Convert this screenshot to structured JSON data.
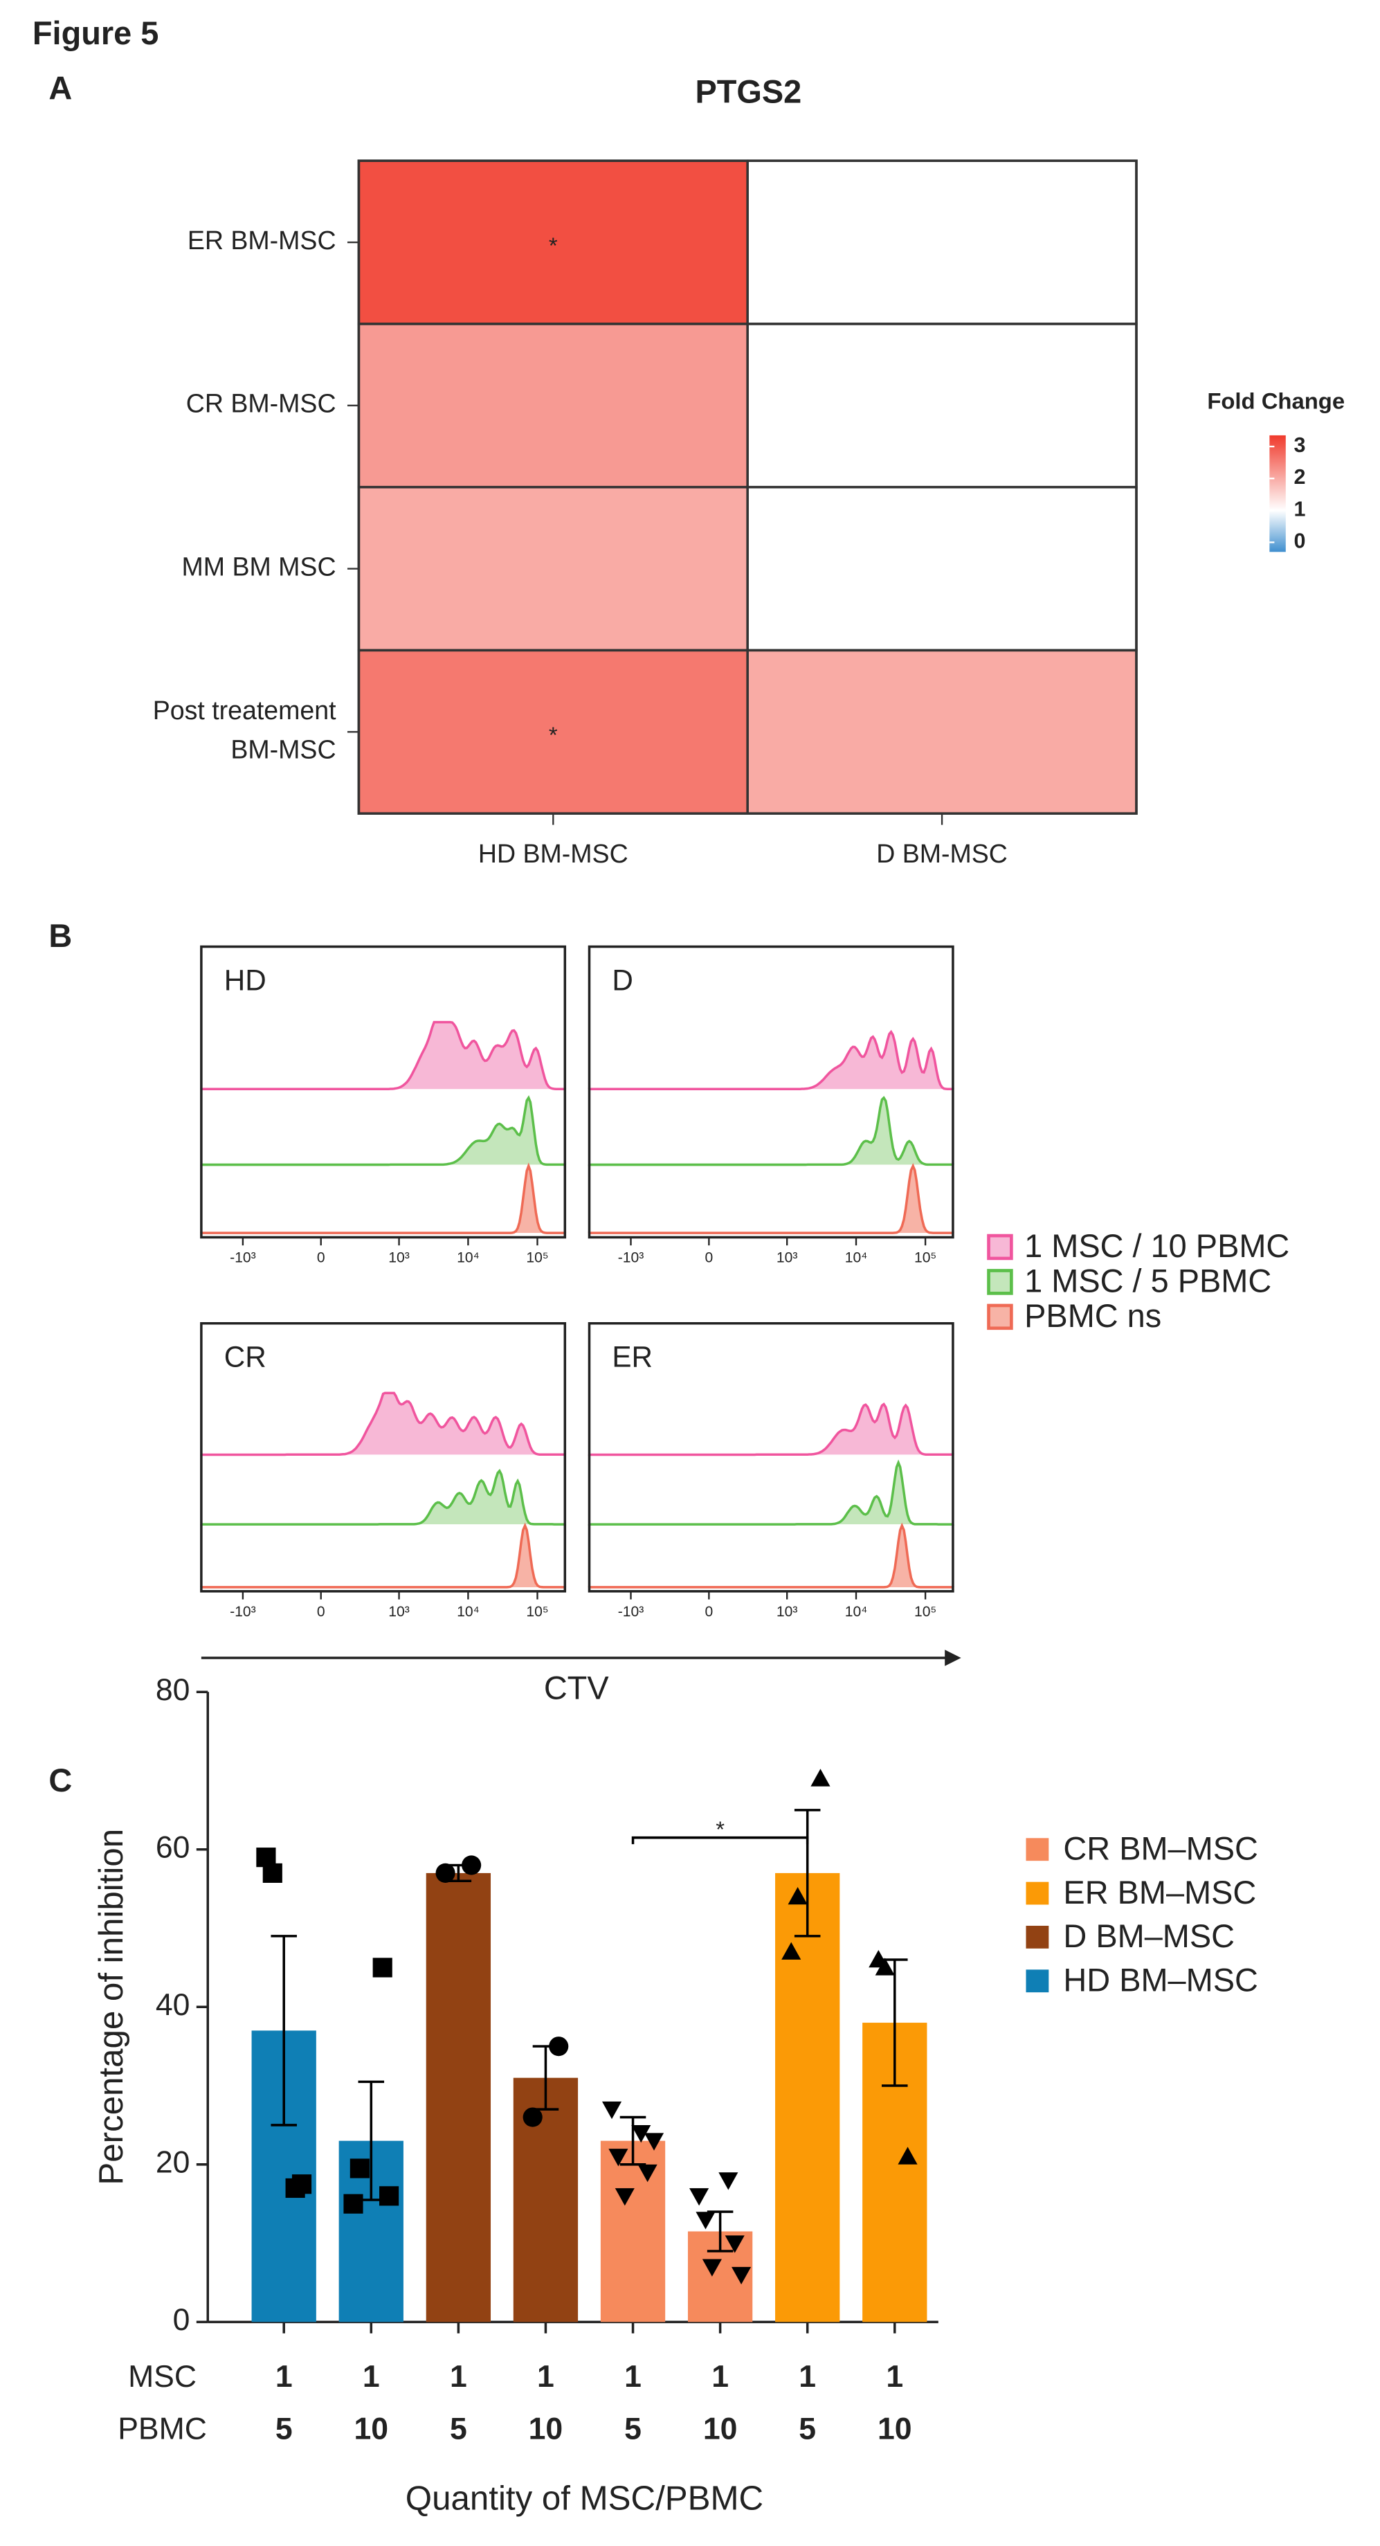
{
  "figure_title": "Figure 5",
  "chart_data": [
    {
      "type": "heatmap",
      "panel": "A",
      "title": "PTGS2",
      "rows": [
        "ER BM-MSC",
        "CR BM-MSC",
        "MM BM MSC",
        [
          "Post treatement",
          "BM-MSC"
        ]
      ],
      "columns": [
        "HD BM-MSC",
        "D BM-MSC"
      ],
      "values": [
        [
          3.1,
          1
        ],
        [
          2.2,
          1
        ],
        [
          2.0,
          1
        ],
        [
          2.6,
          2.0
        ]
      ],
      "cell_labels": [
        [
          "*",
          null
        ],
        [
          null,
          null
        ],
        [
          null,
          null
        ],
        [
          "*",
          null
        ]
      ],
      "colorbar": {
        "title": "Fold Change",
        "ticks": [
          0,
          1,
          2,
          3
        ],
        "zlim": [
          -0.3,
          3.35
        ],
        "midpoint": 1,
        "colors": {
          "low": "#3f8fcf",
          "mid": "#ffffff",
          "high": "#f03a2c"
        }
      }
    },
    {
      "type": "flow",
      "panel": "B",
      "panels": [
        "HD",
        "D",
        "CR",
        "ER"
      ],
      "series": [
        {
          "name": "1 MSC / 10 PBMC",
          "color": "#f0559e",
          "fill": "#f7b8d6"
        },
        {
          "name": "1 MSC / 5 PBMC",
          "color": "#5cbf4a",
          "fill": "#c4e6bb"
        },
        {
          "name": "PBMC ns",
          "color": "#ef6a55",
          "fill": "#f7b3a6"
        }
      ],
      "xscale": "asinh",
      "xlim": [
        -4000,
        250000
      ],
      "xticks": [
        {
          "value": -1000,
          "label": "-10³"
        },
        0,
        {
          "value": 1000,
          "label": "10³"
        },
        {
          "value": 10000,
          "label": "10⁴"
        },
        {
          "value": 100000,
          "label": "10⁵"
        }
      ],
      "xlabel": "CTV"
    },
    {
      "type": "bar",
      "panel": "C",
      "ylabel": "Percentage of inhibition",
      "xlabel": "Quantity of MSC/PBMC",
      "ylim": [
        0,
        80
      ],
      "yticks": [
        0,
        20,
        40,
        60,
        80
      ],
      "category_rows": [
        "MSC",
        "PBMC"
      ],
      "categories": [
        [
          "1",
          "5"
        ],
        [
          "1",
          "10"
        ],
        [
          "1",
          "5"
        ],
        [
          "1",
          "10"
        ],
        [
          "1",
          "5"
        ],
        [
          "1",
          "10"
        ],
        [
          "1",
          "5"
        ],
        [
          "1",
          "10"
        ]
      ],
      "series": [
        {
          "name": "CR BM–MSC",
          "color": "#f68a5c",
          "marker": "triangle-down",
          "values": [
            null,
            null,
            null,
            null,
            23,
            11.5,
            null,
            null
          ],
          "errors": [
            null,
            null,
            null,
            null,
            3,
            2.5,
            null,
            null
          ],
          "points": [
            null,
            null,
            null,
            null,
            [
              27,
              24,
              21,
              19,
              16,
              23
            ],
            [
              16,
              18,
              13,
              10,
              7,
              6
            ],
            null,
            null
          ]
        },
        {
          "name": "ER BM–MSC",
          "color": "#fb9a06",
          "marker": "triangle-up",
          "values": [
            null,
            null,
            null,
            null,
            null,
            null,
            57,
            38
          ],
          "errors": [
            null,
            null,
            null,
            null,
            null,
            null,
            8,
            8
          ],
          "points": [
            null,
            null,
            null,
            null,
            null,
            null,
            [
              47,
              69,
              54
            ],
            [
              46,
              21,
              45
            ]
          ]
        },
        {
          "name": "D BM–MSC",
          "color": "#924213",
          "marker": "circle",
          "values": [
            null,
            null,
            57,
            31,
            null,
            null,
            null,
            null
          ],
          "errors": [
            null,
            null,
            1,
            4,
            null,
            null,
            null,
            null
          ],
          "points": [
            null,
            null,
            [
              57,
              58
            ],
            [
              26,
              35
            ],
            null,
            null,
            null,
            null
          ]
        },
        {
          "name": "HD BM–MSC",
          "color": "#0f7fb5",
          "marker": "square",
          "values": [
            37,
            23,
            null,
            null,
            null,
            null,
            null,
            null
          ],
          "errors": [
            12,
            7.5,
            null,
            null,
            null,
            null,
            null,
            null
          ],
          "points": [
            [
              59,
              17,
              57,
              17.5
            ],
            [
              15,
              45,
              19.5,
              16
            ],
            null,
            null,
            null,
            null,
            null,
            null
          ]
        }
      ],
      "annotations": [
        {
          "text": "*",
          "from": 4,
          "to": 6,
          "y": 61.5
        }
      ]
    }
  ]
}
